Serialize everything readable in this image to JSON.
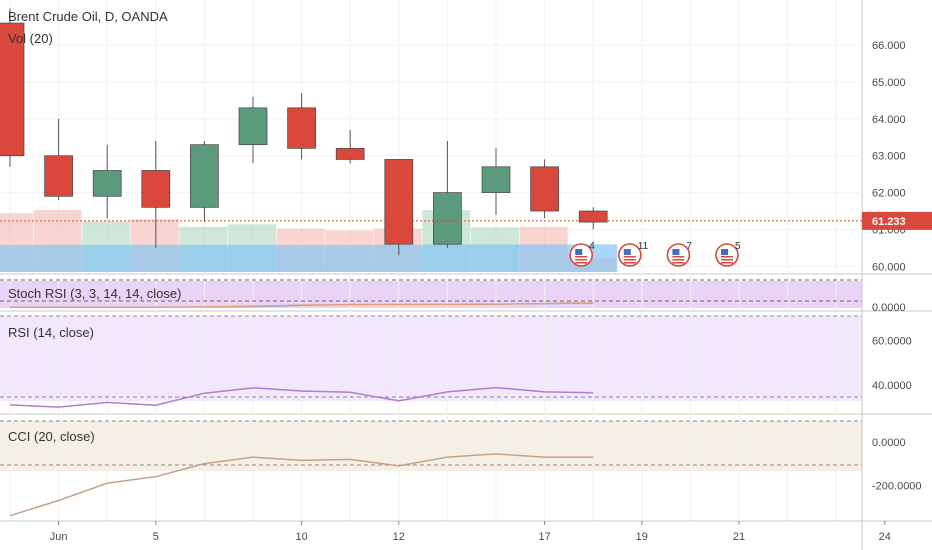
{
  "header": {
    "symbol_title": "Brent Crude Oil, D, OANDA",
    "volume_title": "Vol (20)"
  },
  "price_tag": "61.233",
  "chart_data": [
    {
      "type": "candlestick",
      "title": "Brent Crude Oil, D, OANDA",
      "x": [
        "May 31",
        "Jun 3",
        "Jun 4",
        "Jun 5",
        "Jun 6",
        "Jun 7",
        "Jun 10",
        "Jun 11",
        "Jun 12",
        "Jun 13",
        "Jun 14",
        "Jun 17",
        "Jun 18"
      ],
      "ohlc": [
        [
          66.6,
          67.0,
          62.7,
          63.0
        ],
        [
          63.0,
          64.0,
          61.8,
          61.9
        ],
        [
          61.9,
          63.3,
          61.3,
          62.6
        ],
        [
          62.6,
          63.4,
          60.5,
          61.6
        ],
        [
          61.6,
          63.4,
          61.2,
          63.3
        ],
        [
          63.3,
          64.6,
          62.8,
          64.3
        ],
        [
          64.3,
          64.7,
          62.9,
          63.2
        ],
        [
          63.2,
          63.7,
          62.8,
          62.9
        ],
        [
          62.9,
          62.9,
          60.3,
          60.6
        ],
        [
          60.6,
          63.4,
          60.5,
          62.0
        ],
        [
          62.0,
          63.2,
          61.4,
          62.7
        ],
        [
          62.7,
          62.9,
          61.3,
          61.5
        ],
        [
          61.5,
          61.6,
          61.0,
          61.2
        ]
      ],
      "ylim": [
        59.9,
        66.9
      ],
      "y_ticks": [
        "66.000",
        "65.000",
        "64.000",
        "63.000",
        "62.000",
        "61.000",
        "60.000"
      ],
      "last_price": 61.233,
      "colors": {
        "up": "#5b9a7d",
        "down": "#d9483b",
        "wick": "#555555"
      }
    },
    {
      "type": "bar",
      "title": "Vol (20)",
      "x": [
        "May 31",
        "Jun 3",
        "Jun 4",
        "Jun 5",
        "Jun 6",
        "Jun 7",
        "Jun 10",
        "Jun 11",
        "Jun 12",
        "Jun 13",
        "Jun 14",
        "Jun 17",
        "Jun 18"
      ],
      "values": [
        0.95,
        1.0,
        0.82,
        0.85,
        0.73,
        0.77,
        0.7,
        0.67,
        0.7,
        1.0,
        0.72,
        0.73,
        0.22
      ],
      "ma_values": [
        0.7,
        0.71,
        0.71,
        0.71,
        0.71,
        0.71,
        0.7,
        0.7,
        0.71,
        0.72,
        0.72,
        0.72,
        0.72
      ],
      "up_flags": [
        0,
        0,
        1,
        0,
        1,
        1,
        0,
        0,
        0,
        1,
        1,
        0,
        0
      ]
    },
    {
      "type": "line",
      "title": "Stoch RSI (3, 3, 14, 14, close)",
      "y_ticks": [
        "0.0000"
      ],
      "ylim": [
        0,
        100
      ],
      "series": [
        {
          "values": [
            18,
            17,
            17,
            18,
            20,
            24,
            35,
            44,
            44,
            45,
            47,
            53,
            58
          ]
        },
        {
          "values": [
            17,
            17,
            17,
            18,
            21,
            28,
            40,
            43,
            44,
            45,
            48,
            54,
            60
          ]
        }
      ]
    },
    {
      "type": "line",
      "title": "RSI (14, close)",
      "y_ticks": [
        "60.0000",
        "40.0000"
      ],
      "ylim": [
        28,
        70
      ],
      "bands": [
        30,
        70
      ],
      "series": [
        {
          "values": [
            31.2,
            30.2,
            32.3,
            31.0,
            36.4,
            38.8,
            37.4,
            36.8,
            33.0,
            37.0,
            38.9,
            37.0,
            36.6
          ]
        }
      ]
    },
    {
      "type": "line",
      "title": "CCI (20, close)",
      "y_ticks": [
        "0.0000",
        "-200.0000"
      ],
      "ylim": [
        -360,
        120
      ],
      "bands": [
        100,
        -100
      ],
      "series": [
        {
          "values": [
            -340,
            -270,
            -190,
            -160,
            -100,
            -70,
            -85,
            -80,
            -110,
            -70,
            -55,
            -70,
            -70
          ]
        }
      ]
    }
  ],
  "x_axis": {
    "labels": [
      "Jun",
      "5",
      "10",
      "12",
      "17",
      "19",
      "21",
      "24"
    ],
    "label_x_index": [
      1,
      3,
      6,
      8,
      11,
      13,
      15,
      18
    ]
  },
  "events": [
    {
      "icon": "us-flag-calendar-icon",
      "count": "4",
      "x_index": 12
    },
    {
      "icon": "us-flag-calendar-icon",
      "count": "11",
      "x_index": 13
    },
    {
      "icon": "us-flag-calendar-icon",
      "count": "7",
      "x_index": 14
    },
    {
      "icon": "us-flag-calendar-icon",
      "count": "5",
      "x_index": 15
    }
  ]
}
